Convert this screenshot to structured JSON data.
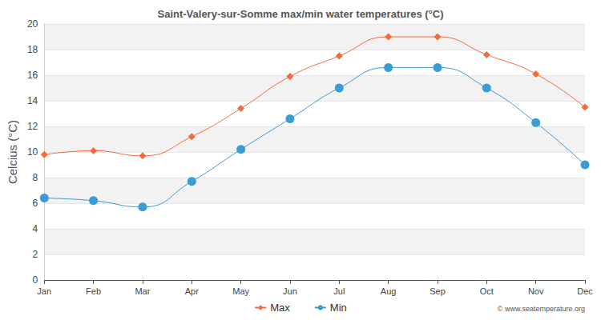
{
  "chart_data": {
    "type": "line",
    "title": "Saint-Valery-sur-Somme max/min water temperatures (°C)",
    "y_label": "Celcius (°C)",
    "annotation": "© www.seatemperature.org",
    "categories": [
      "Jan",
      "Feb",
      "Mar",
      "Apr",
      "May",
      "Jun",
      "Jul",
      "Aug",
      "Sep",
      "Oct",
      "Nov",
      "Dec"
    ],
    "series": [
      {
        "name": "Max",
        "color": "#f26b3a",
        "marker": "diamond",
        "values": [
          9.8,
          10.1,
          9.7,
          11.2,
          13.4,
          15.9,
          17.5,
          19.0,
          19.0,
          17.6,
          16.1,
          13.5
        ]
      },
      {
        "name": "Min",
        "color": "#3a9bd5",
        "marker": "circle",
        "values": [
          6.4,
          6.2,
          5.7,
          7.7,
          10.2,
          12.6,
          15.0,
          16.6,
          16.6,
          15.0,
          12.3,
          9.0
        ]
      }
    ],
    "ylim": [
      0,
      20
    ],
    "yticks": [
      0,
      2,
      4,
      6,
      8,
      10,
      12,
      14,
      16,
      18,
      20
    ],
    "grid": true,
    "legend": "bottom"
  }
}
